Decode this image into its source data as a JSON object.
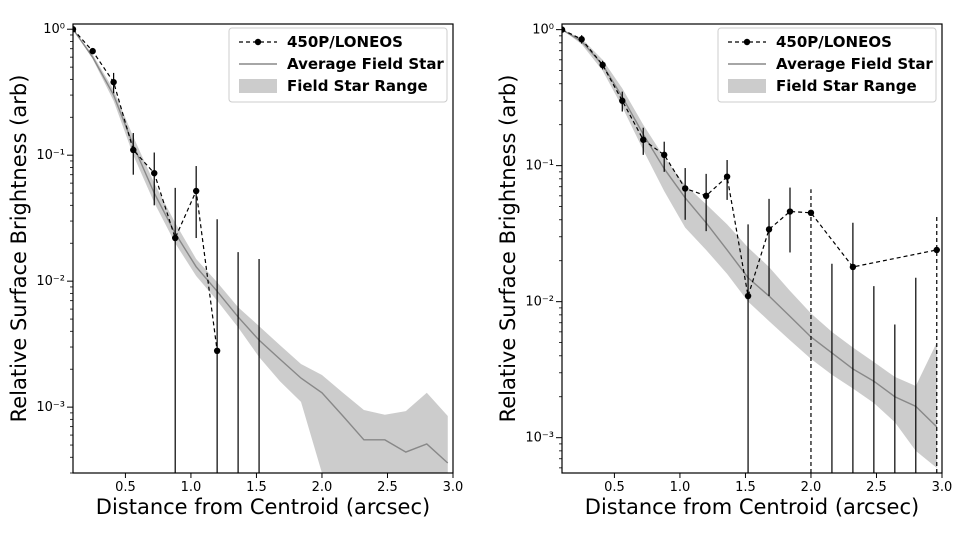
{
  "chart_data": [
    {
      "type": "line",
      "xlabel": "Distance from Centroid (arcsec)",
      "ylabel": "Relative Surface Brightness (arb)",
      "xlim": [
        0.1,
        3.0
      ],
      "ylim": [
        0.0003,
        1.1
      ],
      "yscale": "log",
      "grid": false,
      "legend_position": "top-right",
      "xticks": [
        {
          "value": 0.5,
          "label": "0.5"
        },
        {
          "value": 1.0,
          "label": "1.0"
        },
        {
          "value": 1.5,
          "label": "1.5"
        },
        {
          "value": 2.0,
          "label": "2.0"
        },
        {
          "value": 2.5,
          "label": "2.5"
        },
        {
          "value": 3.0,
          "label": "3.0"
        }
      ],
      "yticks": [
        {
          "value": 1,
          "label": "10⁰"
        },
        {
          "value": 0.1,
          "label": "10⁻¹"
        },
        {
          "value": 0.01,
          "label": "10⁻²"
        },
        {
          "value": 0.001,
          "label": "10⁻³"
        }
      ],
      "series": [
        {
          "name": "450P/LONEOS",
          "style": "dashed-marker",
          "color": "#000000",
          "points": [
            {
              "x": 0.1,
              "y": 1.0
            },
            {
              "x": 0.25,
              "y": 0.67
            },
            {
              "x": 0.41,
              "y": 0.38,
              "err_low": 0.31,
              "err_high": 0.45
            },
            {
              "x": 0.56,
              "y": 0.11,
              "err_low": 0.07,
              "err_high": 0.15
            },
            {
              "x": 0.72,
              "y": 0.072,
              "err_low": 0.04,
              "err_high": 0.105
            },
            {
              "x": 0.88,
              "y": 0.022,
              "err_low": 0.0003,
              "err_high": 0.055
            },
            {
              "x": 1.04,
              "y": 0.052,
              "err_low": 0.022,
              "err_high": 0.082
            },
            {
              "x": 1.2,
              "y": 0.0028,
              "err_low": 0.0003,
              "err_high": 0.031
            },
            {
              "x": 1.36,
              "y": null,
              "err_low": 0.0003,
              "err_high": 0.017
            },
            {
              "x": 1.52,
              "y": null,
              "err_low": 0.0003,
              "err_high": 0.015
            }
          ]
        },
        {
          "name": "Average Field Star",
          "style": "line",
          "color": "#888888",
          "points": [
            {
              "x": 0.1,
              "y": 1.0
            },
            {
              "x": 0.25,
              "y": 0.6
            },
            {
              "x": 0.41,
              "y": 0.3
            },
            {
              "x": 0.56,
              "y": 0.12
            },
            {
              "x": 0.72,
              "y": 0.05
            },
            {
              "x": 0.88,
              "y": 0.024
            },
            {
              "x": 1.04,
              "y": 0.013
            },
            {
              "x": 1.2,
              "y": 0.0083
            },
            {
              "x": 1.36,
              "y": 0.0052
            },
            {
              "x": 1.52,
              "y": 0.0034
            },
            {
              "x": 1.68,
              "y": 0.0024
            },
            {
              "x": 1.84,
              "y": 0.0017
            },
            {
              "x": 2.0,
              "y": 0.0013
            },
            {
              "x": 2.16,
              "y": 0.00085
            },
            {
              "x": 2.32,
              "y": 0.00055
            },
            {
              "x": 2.48,
              "y": 0.00055
            },
            {
              "x": 2.64,
              "y": 0.00044
            },
            {
              "x": 2.8,
              "y": 0.00051
            },
            {
              "x": 2.96,
              "y": 0.00036
            }
          ]
        },
        {
          "name": "Field Star Range",
          "style": "band",
          "color": "#cccccc",
          "points": [
            {
              "x": 0.1,
              "low": 1.0,
              "high": 1.0
            },
            {
              "x": 0.25,
              "low": 0.58,
              "high": 0.63
            },
            {
              "x": 0.41,
              "low": 0.27,
              "high": 0.33
            },
            {
              "x": 0.56,
              "low": 0.1,
              "high": 0.14
            },
            {
              "x": 0.72,
              "low": 0.042,
              "high": 0.06
            },
            {
              "x": 0.88,
              "low": 0.02,
              "high": 0.029
            },
            {
              "x": 1.04,
              "low": 0.011,
              "high": 0.015
            },
            {
              "x": 1.2,
              "low": 0.007,
              "high": 0.0098
            },
            {
              "x": 1.36,
              "low": 0.0043,
              "high": 0.0062
            },
            {
              "x": 1.52,
              "low": 0.0025,
              "high": 0.0044
            },
            {
              "x": 1.68,
              "low": 0.0016,
              "high": 0.0031
            },
            {
              "x": 1.84,
              "low": 0.0011,
              "high": 0.0022
            },
            {
              "x": 2.0,
              "low": 0.0003,
              "high": 0.0018
            },
            {
              "x": 2.16,
              "low": 0.0003,
              "high": 0.0013
            },
            {
              "x": 2.32,
              "low": 0.0003,
              "high": 0.00095
            },
            {
              "x": 2.48,
              "low": 0.0003,
              "high": 0.00087
            },
            {
              "x": 2.64,
              "low": 0.0003,
              "high": 0.00093
            },
            {
              "x": 2.8,
              "low": 0.0003,
              "high": 0.0013
            },
            {
              "x": 2.96,
              "low": 0.0003,
              "high": 0.00085
            }
          ]
        }
      ]
    },
    {
      "type": "line",
      "xlabel": "Distance from Centroid (arcsec)",
      "ylabel": "Relative Surface Brightness (arb)",
      "xlim": [
        0.1,
        3.0
      ],
      "ylim": [
        0.00055,
        1.1
      ],
      "yscale": "log",
      "grid": false,
      "legend_position": "top-right",
      "xticks": [
        {
          "value": 0.5,
          "label": "0.5"
        },
        {
          "value": 1.0,
          "label": "1.0"
        },
        {
          "value": 1.5,
          "label": "1.5"
        },
        {
          "value": 2.0,
          "label": "2.0"
        },
        {
          "value": 2.5,
          "label": "2.5"
        },
        {
          "value": 3.0,
          "label": "3.0"
        }
      ],
      "yticks": [
        {
          "value": 1,
          "label": "10⁰"
        },
        {
          "value": 0.1,
          "label": "10⁻¹"
        },
        {
          "value": 0.01,
          "label": "10⁻²"
        },
        {
          "value": 0.001,
          "label": "10⁻³"
        }
      ],
      "series": [
        {
          "name": "450P/LONEOS",
          "style": "dashed-marker",
          "color": "#000000",
          "points": [
            {
              "x": 0.1,
              "y": 1.0
            },
            {
              "x": 0.25,
              "y": 0.85,
              "err_low": 0.79,
              "err_high": 0.91
            },
            {
              "x": 0.41,
              "y": 0.55,
              "err_low": 0.51,
              "err_high": 0.59
            },
            {
              "x": 0.56,
              "y": 0.3,
              "err_low": 0.25,
              "err_high": 0.35
            },
            {
              "x": 0.72,
              "y": 0.155,
              "err_low": 0.12,
              "err_high": 0.19
            },
            {
              "x": 0.88,
              "y": 0.12,
              "err_low": 0.09,
              "err_high": 0.15
            },
            {
              "x": 1.04,
              "y": 0.068,
              "err_low": 0.04,
              "err_high": 0.096
            },
            {
              "x": 1.2,
              "y": 0.06,
              "err_low": 0.033,
              "err_high": 0.087
            },
            {
              "x": 1.36,
              "y": 0.083,
              "err_low": 0.056,
              "err_high": 0.11
            },
            {
              "x": 1.52,
              "y": 0.011,
              "err_low": 0.00055,
              "err_high": 0.037
            },
            {
              "x": 1.68,
              "y": 0.034,
              "err_low": 0.011,
              "err_high": 0.057
            },
            {
              "x": 1.84,
              "y": 0.046,
              "err_low": 0.023,
              "err_high": 0.069
            },
            {
              "x": 2.0,
              "y": 0.045,
              "err_low": 0.00055,
              "err_high": 0.067
            },
            {
              "x": 2.16,
              "y": null,
              "err_low": 0.00055,
              "err_high": 0.019
            },
            {
              "x": 2.32,
              "y": 0.018,
              "err_low": 0.00055,
              "err_high": 0.038
            },
            {
              "x": 2.48,
              "y": null,
              "err_low": 0.00055,
              "err_high": 0.013
            },
            {
              "x": 2.64,
              "y": null,
              "err_low": 0.00055,
              "err_high": 0.0068
            },
            {
              "x": 2.8,
              "y": null,
              "err_low": 0.00055,
              "err_high": 0.015
            },
            {
              "x": 2.96,
              "y": 0.024,
              "err_low": 0.00055,
              "err_high": 0.042
            }
          ]
        },
        {
          "name": "Average Field Star",
          "style": "line",
          "color": "#888888",
          "points": [
            {
              "x": 0.1,
              "y": 1.0
            },
            {
              "x": 0.25,
              "y": 0.82
            },
            {
              "x": 0.41,
              "y": 0.55
            },
            {
              "x": 0.56,
              "y": 0.32
            },
            {
              "x": 0.72,
              "y": 0.17
            },
            {
              "x": 0.88,
              "y": 0.095
            },
            {
              "x": 1.04,
              "y": 0.058
            },
            {
              "x": 1.2,
              "y": 0.038
            },
            {
              "x": 1.36,
              "y": 0.024
            },
            {
              "x": 1.52,
              "y": 0.015
            },
            {
              "x": 1.68,
              "y": 0.011
            },
            {
              "x": 1.84,
              "y": 0.0078
            },
            {
              "x": 2.0,
              "y": 0.0055
            },
            {
              "x": 2.16,
              "y": 0.0042
            },
            {
              "x": 2.32,
              "y": 0.0032
            },
            {
              "x": 2.48,
              "y": 0.0026
            },
            {
              "x": 2.64,
              "y": 0.002
            },
            {
              "x": 2.8,
              "y": 0.0017
            },
            {
              "x": 2.96,
              "y": 0.0012
            }
          ]
        },
        {
          "name": "Field Star Range",
          "style": "band",
          "color": "#cccccc",
          "points": [
            {
              "x": 0.1,
              "low": 1.0,
              "high": 1.0
            },
            {
              "x": 0.25,
              "low": 0.78,
              "high": 0.86
            },
            {
              "x": 0.41,
              "low": 0.5,
              "high": 0.6
            },
            {
              "x": 0.56,
              "low": 0.27,
              "high": 0.37
            },
            {
              "x": 0.72,
              "low": 0.13,
              "high": 0.2
            },
            {
              "x": 0.88,
              "low": 0.065,
              "high": 0.115
            },
            {
              "x": 1.04,
              "low": 0.035,
              "high": 0.072
            },
            {
              "x": 1.2,
              "low": 0.024,
              "high": 0.052
            },
            {
              "x": 1.36,
              "low": 0.016,
              "high": 0.037
            },
            {
              "x": 1.52,
              "low": 0.01,
              "high": 0.025
            },
            {
              "x": 1.68,
              "low": 0.0072,
              "high": 0.018
            },
            {
              "x": 1.84,
              "low": 0.0052,
              "high": 0.012
            },
            {
              "x": 2.0,
              "low": 0.0038,
              "high": 0.0082
            },
            {
              "x": 2.16,
              "low": 0.0029,
              "high": 0.006
            },
            {
              "x": 2.32,
              "low": 0.0023,
              "high": 0.0046
            },
            {
              "x": 2.48,
              "low": 0.0018,
              "high": 0.0036
            },
            {
              "x": 2.64,
              "low": 0.0013,
              "high": 0.0028
            },
            {
              "x": 2.8,
              "low": 0.0008,
              "high": 0.0024
            },
            {
              "x": 2.96,
              "low": 0.0006,
              "high": 0.005
            }
          ]
        }
      ]
    }
  ]
}
